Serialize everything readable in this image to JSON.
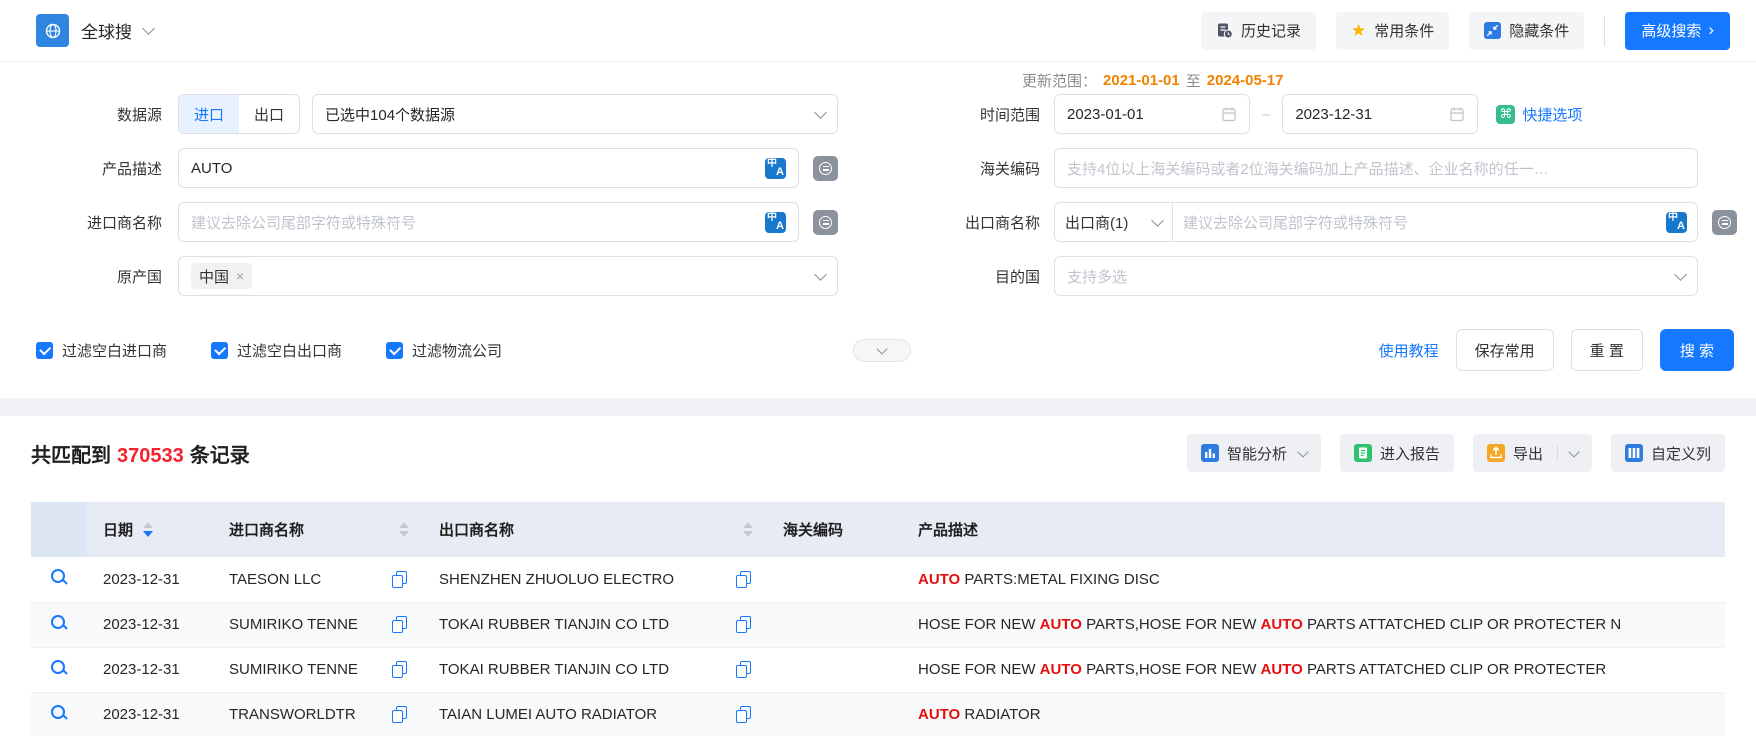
{
  "topbar": {
    "app_title": "全球搜",
    "history_btn": "历史记录",
    "favorites_btn": "常用条件",
    "hide_btn": "隐藏条件",
    "advanced_btn": "高级搜索"
  },
  "icons": {
    "command": "⌘",
    "star": "★",
    "close": "×",
    "advanced_chevron": "›"
  },
  "form": {
    "update_range": {
      "label": "更新范围：",
      "from": "2021-01-01",
      "mid": "至",
      "to": "2024-05-17"
    },
    "data_source": {
      "label": "数据源",
      "import_tab": "进口",
      "export_tab": "出口",
      "selected": "已选中104个数据源"
    },
    "time_range": {
      "label": "时间范围",
      "start": "2023-01-01",
      "separator": "–",
      "end": "2023-12-31",
      "quick": "快捷选项"
    },
    "product_desc": {
      "label": "产品描述",
      "value": "AUTO"
    },
    "hs_code": {
      "label": "海关编码",
      "placeholder": "支持4位以上海关编码或者2位海关编码加上产品描述、企业名称的任一…"
    },
    "importer": {
      "label": "进口商名称",
      "placeholder": "建议去除公司尾部字符或特殊符号"
    },
    "exporter": {
      "label": "出口商名称",
      "select": "出口商(1)",
      "placeholder": "建议去除公司尾部字符或特殊符号"
    },
    "origin": {
      "label": "原产国",
      "tag": "中国"
    },
    "destination": {
      "label": "目的国",
      "placeholder": "支持多选"
    },
    "checkboxes": [
      "过滤空白进口商",
      "过滤空白出口商",
      "过滤物流公司"
    ],
    "actions": {
      "tutorial": "使用教程",
      "save": "保存常用",
      "reset": "重 置",
      "search": "搜 索"
    }
  },
  "results": {
    "summary": {
      "prefix": "共匹配到",
      "count": "370533",
      "suffix": "条记录"
    },
    "toolbar": {
      "analysis": "智能分析",
      "report": "进入报告",
      "export": "导出",
      "columns": "自定义列"
    },
    "table": {
      "headers": [
        "日期",
        "进口商名称",
        "出口商名称",
        "海关编码",
        "产品描述"
      ],
      "rows": [
        {
          "date": "2023-12-31",
          "importer": "TAESON LLC",
          "exporter": "SHENZHEN ZHUOLUO ELECTRO",
          "hs_code": "",
          "desc": [
            [
              "AUTO",
              1
            ],
            [
              " PARTS:METAL FIXING DISC",
              0
            ]
          ]
        },
        {
          "date": "2023-12-31",
          "importer": "SUMIRIKO TENNE",
          "exporter": "TOKAI RUBBER TIANJIN CO LTD",
          "hs_code": "",
          "desc": [
            [
              "HOSE FOR NEW ",
              0
            ],
            [
              "AUTO",
              1
            ],
            [
              " PARTS,HOSE FOR NEW ",
              0
            ],
            [
              "AUTO",
              1
            ],
            [
              " PARTS ATTATCHED CLIP OR PROTECTER N",
              0
            ]
          ]
        },
        {
          "date": "2023-12-31",
          "importer": "SUMIRIKO TENNE",
          "exporter": "TOKAI RUBBER TIANJIN CO LTD",
          "hs_code": "",
          "desc": [
            [
              "HOSE FOR NEW ",
              0
            ],
            [
              "AUTO",
              1
            ],
            [
              " PARTS,HOSE FOR NEW ",
              0
            ],
            [
              "AUTO",
              1
            ],
            [
              " PARTS ATTATCHED CLIP OR PROTECTER",
              0
            ]
          ]
        },
        {
          "date": "2023-12-31",
          "importer": "TRANSWORLDTR",
          "exporter": "TAIAN LUMEI AUTO RADIATOR",
          "hs_code": "",
          "desc": [
            [
              "AUTO",
              1
            ],
            [
              " RADIATOR",
              0
            ]
          ]
        }
      ]
    }
  },
  "colors": {
    "accent": "#1677ff",
    "count_red": "#f5222d",
    "highlight_red": "#e60f0f",
    "date_orange": "#f08200"
  }
}
